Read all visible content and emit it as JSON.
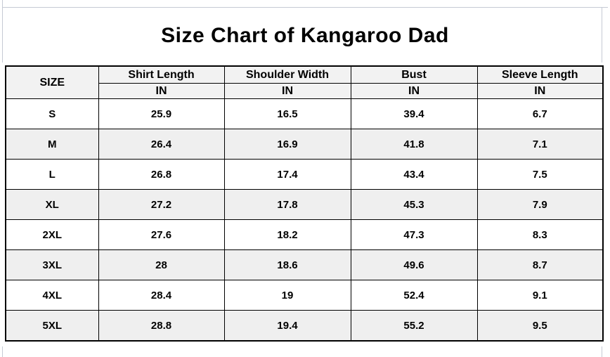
{
  "colors": {
    "grid_line": "#c5cad4",
    "table_border": "#000000",
    "header_bg": "#f2f2f2",
    "stripe_bg": "#efefef",
    "text": "#000000"
  },
  "chart_data": {
    "type": "table",
    "title": "Size Chart of Kangaroo Dad",
    "size_header": "SIZE",
    "unit_label": "IN",
    "measure_columns": [
      "Shirt Length",
      "Shoulder Width",
      "Bust",
      "Sleeve Length"
    ],
    "rows": [
      {
        "size": "S",
        "values": [
          "25.9",
          "16.5",
          "39.4",
          "6.7"
        ]
      },
      {
        "size": "M",
        "values": [
          "26.4",
          "16.9",
          "41.8",
          "7.1"
        ]
      },
      {
        "size": "L",
        "values": [
          "26.8",
          "17.4",
          "43.4",
          "7.5"
        ]
      },
      {
        "size": "XL",
        "values": [
          "27.2",
          "17.8",
          "45.3",
          "7.9"
        ]
      },
      {
        "size": "2XL",
        "values": [
          "27.6",
          "18.2",
          "47.3",
          "8.3"
        ]
      },
      {
        "size": "3XL",
        "values": [
          "28",
          "18.6",
          "49.6",
          "8.7"
        ]
      },
      {
        "size": "4XL",
        "values": [
          "28.4",
          "19",
          "52.4",
          "9.1"
        ]
      },
      {
        "size": "5XL",
        "values": [
          "28.8",
          "19.4",
          "55.2",
          "9.5"
        ]
      }
    ]
  }
}
